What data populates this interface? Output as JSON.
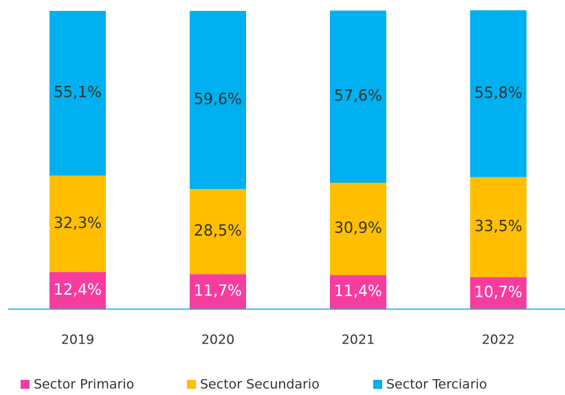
{
  "chart_data": {
    "type": "stacked_bar",
    "categories": [
      "2019",
      "2020",
      "2021",
      "2022"
    ],
    "ylim": [
      0,
      100
    ],
    "series": [
      {
        "name": "Sector Primario",
        "color": "#f73c9f",
        "values": [
          12.4,
          11.7,
          11.4,
          10.7
        ],
        "value_labels": [
          "12,4%",
          "11,7%",
          "11,4%",
          "10,7%"
        ]
      },
      {
        "name": "Sector Secundario",
        "color": "#ffbf00",
        "values": [
          32.3,
          28.5,
          30.9,
          33.5
        ],
        "value_labels": [
          "32,3%",
          "28,5%",
          "30,9%",
          "33,5%"
        ]
      },
      {
        "name": "Sector Terciario",
        "color": "#00b0f0",
        "values": [
          55.1,
          59.6,
          57.6,
          55.8
        ],
        "value_labels": [
          "55,1%",
          "59,6%",
          "57,6%",
          "55,8%"
        ]
      }
    ]
  }
}
